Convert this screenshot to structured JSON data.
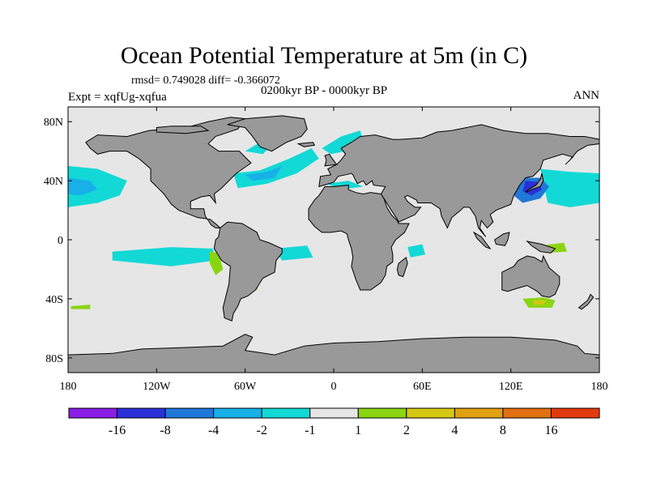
{
  "colors": {
    "ocean_neutral": "#e6e6e6",
    "land": "#999999",
    "coast": "#000000",
    "neg1": "#12d9d6",
    "neg2": "#17b0e8",
    "neg3": "#1f78d8",
    "neg4": "#2b2fd8"
  },
  "chart_data": {
    "type": "heatmap",
    "title": "Ocean Potential Temperature at 5m (in C)",
    "stats_text": "rmsd= 0.749028 diff= -0.366072",
    "period": "0200kyr BP - 0000kyr BP",
    "expt": "Expt = xqfUg-xqfua",
    "season": "ANN",
    "x_axis": {
      "range": [
        -180,
        180
      ],
      "ticks": [
        -180,
        -120,
        -60,
        0,
        60,
        120,
        180
      ],
      "tick_labels": [
        "180",
        "120W",
        "60W",
        "0",
        "60E",
        "120E",
        "180"
      ]
    },
    "y_axis": {
      "range": [
        -90,
        90
      ],
      "ticks": [
        80,
        40,
        0,
        -40,
        -80
      ],
      "tick_labels": [
        "80N",
        "40N",
        "0",
        "40S",
        "80S"
      ]
    },
    "colorbar": {
      "levels": [
        "-16",
        "-8",
        "-4",
        "-2",
        "-1",
        "1",
        "2",
        "4",
        "8",
        "16"
      ],
      "colors": [
        "#8a1ee6",
        "#2b2fd8",
        "#1f78d8",
        "#17b0e8",
        "#12d9d6",
        "#e6e6e6",
        "#8ad512",
        "#d6c812",
        "#e0a010",
        "#e07010",
        "#e23a0e"
      ]
    },
    "anomaly_regions": [
      {
        "name": "north-pacific-west-cool",
        "lon_range": [
          -180,
          -140
        ],
        "lat_range": [
          20,
          50
        ],
        "level": "-1 to -2"
      },
      {
        "name": "north-pacific-east-cool",
        "lon_range": [
          140,
          180
        ],
        "lat_range": [
          20,
          50
        ],
        "level": "-1 to -2"
      },
      {
        "name": "kuroshio-cool",
        "lon_range": [
          125,
          150
        ],
        "lat_range": [
          20,
          45
        ],
        "level": "-4 to -8"
      },
      {
        "name": "north-atlantic-cool",
        "lon_range": [
          -65,
          -10
        ],
        "lat_range": [
          35,
          60
        ],
        "level": "-1 to -2"
      },
      {
        "name": "nordic-seas-cool",
        "lon_range": [
          -5,
          20
        ],
        "lat_range": [
          60,
          75
        ],
        "level": "-1 to -2"
      },
      {
        "name": "east-pacific-equatorial-cool",
        "lon_range": [
          -150,
          -80
        ],
        "lat_range": [
          -20,
          -5
        ],
        "level": "-1 to -2"
      },
      {
        "name": "south-atlantic-cool",
        "lon_range": [
          -40,
          -15
        ],
        "lat_range": [
          -15,
          -5
        ],
        "level": "-1 to -2"
      },
      {
        "name": "peru-coast-warm",
        "lon_range": [
          -85,
          -75
        ],
        "lat_range": [
          -25,
          -10
        ],
        "level": "1 to 2"
      },
      {
        "name": "south-australia-warm",
        "lon_range": [
          128,
          150
        ],
        "lat_range": [
          -45,
          -38
        ],
        "level": "1 to 4"
      },
      {
        "name": "west-pacific-warm-pool",
        "lon_range": [
          130,
          160
        ],
        "lat_range": [
          -10,
          0
        ],
        "level": "1 to 2"
      }
    ]
  }
}
